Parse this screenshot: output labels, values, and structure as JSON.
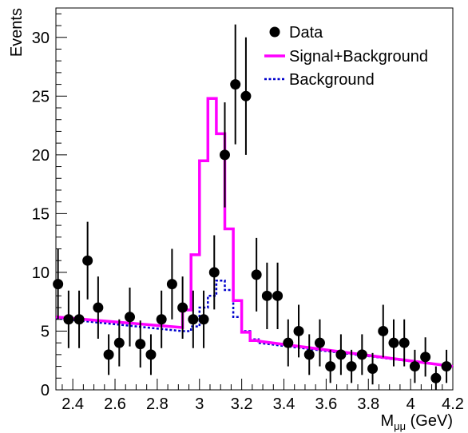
{
  "chart_data": {
    "type": "scatter",
    "xlabel": "M",
    "xlabel_sub": "μμ",
    "xlabel_unit": " (GeV)",
    "ylabel": "Events",
    "xlim": [
      2.32,
      4.2
    ],
    "ylim": [
      0,
      32.5
    ],
    "x_ticks": [
      2.4,
      2.6,
      2.8,
      3.0,
      3.2,
      3.4,
      3.6,
      3.8,
      4.0,
      4.2
    ],
    "x_tick_labels": [
      "2.4",
      "2.6",
      "2.8",
      "3",
      "3.2",
      "3.4",
      "3.6",
      "3.8",
      "4",
      "4.2"
    ],
    "y_ticks": [
      0,
      5,
      10,
      15,
      20,
      25,
      30
    ],
    "y_tick_labels": [
      "0",
      "5",
      "10",
      "15",
      "20",
      "25",
      "30"
    ],
    "legend_position": "top-right",
    "legend": [
      {
        "label": "Data",
        "style": "marker"
      },
      {
        "label": "Signal+Background",
        "style": "solid"
      },
      {
        "label": "Background",
        "style": "dotted"
      }
    ],
    "colors": {
      "data": "#000000",
      "signal_background": "#ff00ff",
      "background": "#0000cc"
    },
    "series": [
      {
        "name": "Data",
        "points": [
          {
            "x": 2.33,
            "y": 9,
            "err": 3
          },
          {
            "x": 2.38,
            "y": 6,
            "err": 2.45
          },
          {
            "x": 2.43,
            "y": 6,
            "err": 2.45
          },
          {
            "x": 2.47,
            "y": 11,
            "err": 3.3
          },
          {
            "x": 2.52,
            "y": 7,
            "err": 2.65
          },
          {
            "x": 2.57,
            "y": 3,
            "err": 1.73
          },
          {
            "x": 2.62,
            "y": 4,
            "err": 2
          },
          {
            "x": 2.67,
            "y": 6.2,
            "err": 2.5
          },
          {
            "x": 2.72,
            "y": 3.9,
            "err": 2
          },
          {
            "x": 2.77,
            "y": 3,
            "err": 1.73
          },
          {
            "x": 2.82,
            "y": 6,
            "err": 2.45
          },
          {
            "x": 2.87,
            "y": 9,
            "err": 3
          },
          {
            "x": 2.92,
            "y": 7,
            "err": 2.65
          },
          {
            "x": 2.97,
            "y": 6,
            "err": 2.45
          },
          {
            "x": 3.02,
            "y": 6,
            "err": 2.45
          },
          {
            "x": 3.07,
            "y": 10,
            "err": 3.16
          },
          {
            "x": 3.12,
            "y": 20,
            "err": 4.47
          },
          {
            "x": 3.17,
            "y": 26,
            "err": 5.1
          },
          {
            "x": 3.22,
            "y": 25,
            "err": 5
          },
          {
            "x": 3.27,
            "y": 9.8,
            "err": 3.13
          },
          {
            "x": 3.32,
            "y": 8,
            "err": 2.83
          },
          {
            "x": 3.37,
            "y": 8,
            "err": 2.83
          },
          {
            "x": 3.42,
            "y": 4,
            "err": 2
          },
          {
            "x": 3.47,
            "y": 5,
            "err": 2.24
          },
          {
            "x": 3.52,
            "y": 3,
            "err": 1.73
          },
          {
            "x": 3.57,
            "y": 4,
            "err": 2
          },
          {
            "x": 3.62,
            "y": 2,
            "err": 1.41
          },
          {
            "x": 3.67,
            "y": 3,
            "err": 1.73
          },
          {
            "x": 3.72,
            "y": 2,
            "err": 1.41
          },
          {
            "x": 3.77,
            "y": 3,
            "err": 1.73
          },
          {
            "x": 3.82,
            "y": 1.8,
            "err": 1.34
          },
          {
            "x": 3.87,
            "y": 5,
            "err": 2.24
          },
          {
            "x": 3.92,
            "y": 4,
            "err": 2
          },
          {
            "x": 3.97,
            "y": 4,
            "err": 2
          },
          {
            "x": 4.02,
            "y": 2,
            "err": 1.41
          },
          {
            "x": 4.07,
            "y": 2.8,
            "err": 1.67
          },
          {
            "x": 4.12,
            "y": 1,
            "err": 1
          },
          {
            "x": 4.17,
            "y": 2,
            "err": 1.41
          }
        ]
      },
      {
        "name": "Signal+Background",
        "x": [
          2.32,
          2.92,
          2.92,
          2.96,
          2.96,
          3.0,
          3.0,
          3.04,
          3.04,
          3.08,
          3.08,
          3.12,
          3.12,
          3.16,
          3.16,
          3.2,
          3.2,
          3.24,
          3.24,
          3.28,
          3.28,
          4.2
        ],
        "y": [
          6.2,
          5.3,
          6.8,
          6.8,
          11.5,
          11.5,
          19.5,
          19.5,
          24.8,
          24.8,
          21.8,
          21.8,
          13.7,
          13.7,
          7.6,
          7.6,
          4.9,
          4.9,
          4.2,
          4.2,
          4.15,
          2.0
        ]
      },
      {
        "name": "Background",
        "x": [
          2.32,
          2.92,
          2.92,
          2.96,
          2.96,
          3.0,
          3.0,
          3.04,
          3.04,
          3.08,
          3.08,
          3.12,
          3.12,
          3.16,
          3.16,
          3.2,
          3.2,
          3.24,
          3.24,
          3.28,
          3.28,
          4.2
        ],
        "y": [
          6.1,
          5.0,
          5.0,
          5.0,
          5.4,
          5.4,
          7.0,
          7.0,
          8.0,
          8.0,
          9.3,
          9.3,
          8.5,
          8.5,
          6.2,
          6.2,
          5.0,
          5.0,
          4.3,
          4.3,
          4.0,
          2.0
        ]
      }
    ]
  }
}
